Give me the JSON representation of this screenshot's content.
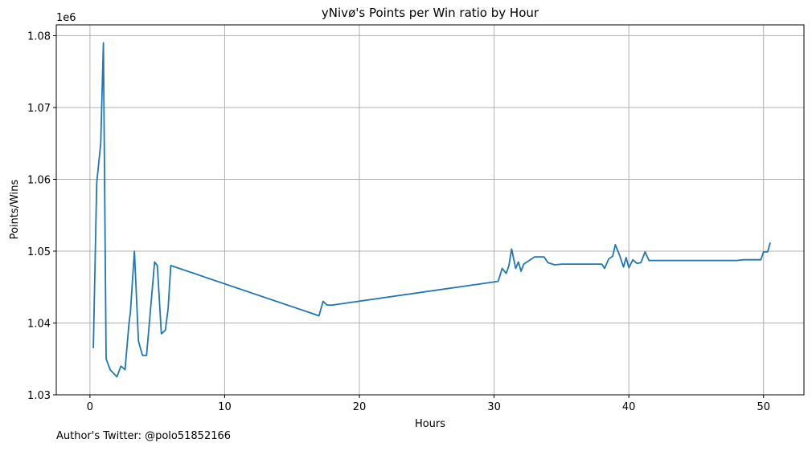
{
  "footer": {
    "author_note": "Author's Twitter: @polo51852166"
  },
  "chart_data": {
    "type": "line",
    "title": "yNivø's Points per Win ratio by Hour",
    "xlabel": "Hours",
    "ylabel": "Points/Wins",
    "y_scale_label": "1e6",
    "xlim": [
      -2.5,
      53
    ],
    "ylim": [
      1030000,
      1081500
    ],
    "x_ticks": [
      0,
      10,
      20,
      30,
      40,
      50
    ],
    "y_ticks": [
      1030000,
      1040000,
      1050000,
      1060000,
      1070000,
      1080000
    ],
    "y_tick_labels": [
      "1.03",
      "1.04",
      "1.05",
      "1.06",
      "1.07",
      "1.08"
    ],
    "grid": true,
    "line_color": "#1f77b4",
    "series": [
      {
        "x": [
          0.25,
          0.5,
          0.8,
          1.0,
          1.2,
          1.5,
          2.0,
          2.3,
          2.6,
          2.9,
          3.0,
          3.3,
          3.6,
          3.9,
          4.2,
          4.5,
          4.8,
          5.0,
          5.3,
          5.6,
          5.8,
          6.0,
          17.0,
          17.3,
          17.6,
          18.0,
          30.3,
          30.6,
          30.9,
          31.1,
          31.3,
          31.6,
          31.8,
          32.0,
          32.2,
          32.6,
          33.0,
          33.4,
          33.7,
          34.0,
          34.5,
          35.0,
          36.0,
          37.0,
          38.0,
          38.2,
          38.5,
          38.8,
          39.0,
          39.3,
          39.6,
          39.8,
          40.0,
          40.3,
          40.6,
          40.9,
          41.2,
          41.5,
          42.0,
          45.0,
          48.0,
          48.5,
          49.0,
          49.8,
          50.0,
          50.3,
          50.5
        ],
        "y": [
          1036500,
          1059500,
          1065000,
          1079000,
          1035000,
          1033500,
          1032500,
          1034000,
          1033500,
          1040000,
          1041500,
          1050000,
          1037500,
          1035500,
          1035500,
          1042000,
          1048500,
          1048000,
          1038500,
          1039000,
          1042000,
          1048000,
          1041000,
          1043000,
          1042500,
          1042500,
          1045800,
          1047600,
          1046900,
          1048000,
          1050300,
          1047600,
          1048500,
          1047200,
          1048200,
          1048700,
          1049200,
          1049200,
          1049200,
          1048400,
          1048100,
          1048200,
          1048200,
          1048200,
          1048200,
          1047600,
          1048900,
          1049300,
          1050900,
          1049500,
          1047800,
          1049100,
          1047700,
          1048800,
          1048300,
          1048400,
          1049900,
          1048700,
          1048700,
          1048700,
          1048700,
          1048800,
          1048800,
          1048800,
          1049900,
          1049900,
          1051200
        ]
      }
    ]
  }
}
